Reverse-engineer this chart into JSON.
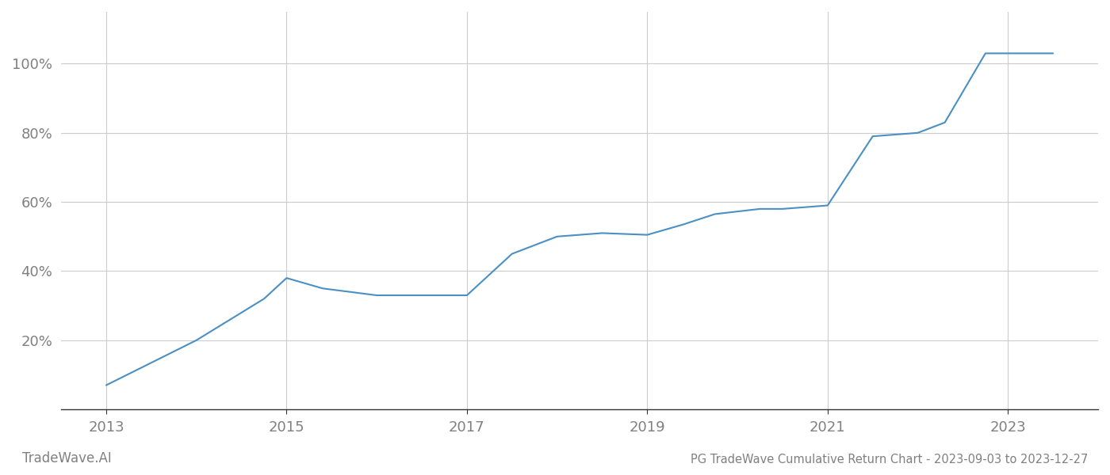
{
  "title": "PG TradeWave Cumulative Return Chart - 2023-09-03 to 2023-12-27",
  "watermark": "TradeWave.AI",
  "line_color": "#4a90c4",
  "background_color": "#ffffff",
  "grid_color": "#cccccc",
  "text_color": "#808080",
  "x_values": [
    2013.0,
    2014.0,
    2014.75,
    2015.0,
    2015.4,
    2016.0,
    2016.5,
    2017.0,
    2017.5,
    2018.0,
    2018.5,
    2019.0,
    2019.4,
    2019.75,
    2020.25,
    2020.5,
    2020.75,
    2021.0,
    2021.5,
    2022.0,
    2022.3,
    2022.75,
    2023.0,
    2023.5
  ],
  "y_values": [
    7.0,
    20.0,
    32.0,
    38.0,
    35.0,
    33.0,
    33.0,
    33.0,
    45.0,
    50.0,
    51.0,
    50.5,
    53.5,
    56.5,
    58.0,
    58.0,
    58.5,
    59.0,
    79.0,
    80.0,
    83.0,
    103.0,
    103.0,
    103.0
  ],
  "xlim": [
    2012.5,
    2024.0
  ],
  "ylim": [
    0,
    115
  ],
  "yticks": [
    20,
    40,
    60,
    80,
    100
  ],
  "ytick_labels": [
    "20%",
    "40%",
    "60%",
    "80%",
    "100%"
  ],
  "xticks": [
    2013,
    2015,
    2017,
    2019,
    2021,
    2023
  ],
  "line_width": 1.5,
  "figsize": [
    14,
    6
  ],
  "dpi": 100
}
